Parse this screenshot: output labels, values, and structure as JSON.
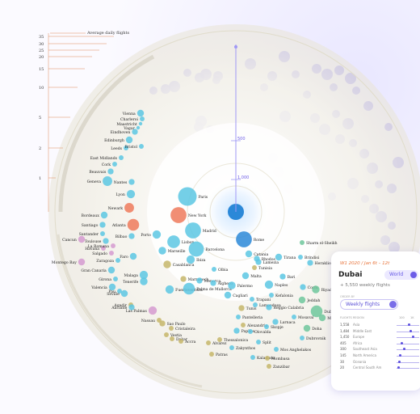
{
  "legend": {
    "title": "Average daily flights",
    "ticks": [
      "35",
      "30",
      "25",
      "20",
      "15",
      "10",
      "5",
      "2",
      "1"
    ]
  },
  "radial_axis": {
    "ticks": [
      "500",
      "1,000"
    ]
  },
  "card": {
    "subtitle": "W1 2020 / Jan 6t – 12t",
    "place": "Dubai",
    "world_label": "World",
    "weekly_flights": "+ 5,550 weekly flights",
    "sort_label": "ORDER BY",
    "sort_value": "Weekly flights",
    "headers": [
      "FLIGHTS",
      "REGION",
      "100",
      "1K"
    ],
    "rows": [
      {
        "weekly": "1,558",
        "region": "Asia",
        "frac": 0.55
      },
      {
        "weekly": "1,484",
        "region": "Middle East",
        "frac": 0.6
      },
      {
        "weekly": "1,450",
        "region": "Europe",
        "frac": 0.72
      },
      {
        "weekly": "405",
        "region": "Africa",
        "frac": 0.18
      },
      {
        "weekly": "300",
        "region": "Southeast Asia",
        "frac": 0.3
      },
      {
        "weekly": "145",
        "region": "North America",
        "frac": 0.12
      },
      {
        "weekly": "30",
        "region": "Oceania",
        "frac": 0.08
      },
      {
        "weekly": "20",
        "region": "Central South Am",
        "frac": 0.05
      }
    ]
  },
  "colors": {
    "accent": "#6c5ce7",
    "europe": "#5cc7e3",
    "red": "#ef7a5c",
    "olive": "#c6b66a",
    "pink": "#d59ad0",
    "green": "#6ec79c",
    "blue": "#2b88d8",
    "lavender": "#9f98f5"
  },
  "chart_data": {
    "type": "scatter",
    "title": "",
    "size_legend": "Average daily flights",
    "destinations": [
      {
        "name": "Vienna",
        "cat": "europe",
        "size": 4
      },
      {
        "name": "Charleroi",
        "cat": "europe",
        "size": 2
      },
      {
        "name": "Maastricht",
        "cat": "europe",
        "size": 1
      },
      {
        "name": "Vagar",
        "cat": "europe",
        "size": 1
      },
      {
        "name": "Eindhoven",
        "cat": "europe",
        "size": 3
      },
      {
        "name": "Edinburgh",
        "cat": "europe",
        "size": 4
      },
      {
        "name": "Leeds",
        "cat": "europe",
        "size": 2
      },
      {
        "name": "Bristol",
        "cat": "europe",
        "size": 2
      },
      {
        "name": "East Midlands",
        "cat": "europe",
        "size": 2
      },
      {
        "name": "Cork",
        "cat": "europe",
        "size": 2
      },
      {
        "name": "Beauvais",
        "cat": "europe",
        "size": 3
      },
      {
        "name": "Geneva",
        "cat": "europe",
        "size": 8
      },
      {
        "name": "Nantes",
        "cat": "europe",
        "size": 3
      },
      {
        "name": "Lyon",
        "cat": "europe",
        "size": 6
      },
      {
        "name": "Paris",
        "cat": "europe",
        "size": 30
      },
      {
        "name": "Newark",
        "cat": "red",
        "size": 8
      },
      {
        "name": "New York",
        "cat": "red",
        "size": 22
      },
      {
        "name": "Atlanta",
        "cat": "red",
        "size": 12
      },
      {
        "name": "Bordeaux",
        "cat": "europe",
        "size": 4
      },
      {
        "name": "Santiago",
        "cat": "europe",
        "size": 3
      },
      {
        "name": "Santander",
        "cat": "europe",
        "size": 2
      },
      {
        "name": "Toulouse",
        "cat": "europe",
        "size": 3
      },
      {
        "name": "Cancun",
        "cat": "pink",
        "size": 4
      },
      {
        "name": "Havana",
        "cat": "pink",
        "size": 2
      },
      {
        "name": "Bilbao",
        "cat": "europe",
        "size": 3
      },
      {
        "name": "La Romana",
        "cat": "pink",
        "size": 2
      },
      {
        "name": "Porto",
        "cat": "europe",
        "size": 6
      },
      {
        "name": "Madrid",
        "cat": "europe",
        "size": 22
      },
      {
        "name": "Lisbon",
        "cat": "europe",
        "size": 14
      },
      {
        "name": "Barcelona",
        "cat": "europe",
        "size": 20
      },
      {
        "name": "Rome",
        "cat": "blue",
        "size": 22
      },
      {
        "name": "Sharm el-Sheikh",
        "cat": "green",
        "size": 2
      },
      {
        "name": "Salgado",
        "cat": "pink",
        "size": 2
      },
      {
        "name": "Montego Bay",
        "cat": "pink",
        "size": 4
      },
      {
        "name": "Faro",
        "cat": "europe",
        "size": 4
      },
      {
        "name": "Zaragoza",
        "cat": "europe",
        "size": 2
      },
      {
        "name": "Marseille",
        "cat": "europe",
        "size": 5
      },
      {
        "name": "Casablanca",
        "cat": "olive",
        "size": 5
      },
      {
        "name": "Gran Canaria",
        "cat": "europe",
        "size": 4
      },
      {
        "name": "Malaga",
        "cat": "europe",
        "size": 6
      },
      {
        "name": "Tenerife",
        "cat": "europe",
        "size": 5
      },
      {
        "name": "Girona",
        "cat": "europe",
        "size": 2
      },
      {
        "name": "Ibiza",
        "cat": "europe",
        "size": 6
      },
      {
        "name": "Valencia",
        "cat": "europe",
        "size": 4
      },
      {
        "name": "Marrakech",
        "cat": "olive",
        "size": 3
      },
      {
        "name": "Menorca",
        "cat": "europe",
        "size": 3
      },
      {
        "name": "Olbia",
        "cat": "europe",
        "size": 2
      },
      {
        "name": "Catania",
        "cat": "europe",
        "size": 4
      },
      {
        "name": "Rhodos",
        "cat": "europe",
        "size": 3
      },
      {
        "name": "Tirana",
        "cat": "europe",
        "size": 4
      },
      {
        "name": "Brindisi",
        "cat": "europe",
        "size": 2
      },
      {
        "name": "Heraklion",
        "cat": "europe",
        "size": 3
      },
      {
        "name": "Tunisia",
        "cat": "olive",
        "size": 2
      },
      {
        "name": "Lamezia",
        "cat": "europe",
        "size": 3
      },
      {
        "name": "Seville",
        "cat": "europe",
        "size": 4
      },
      {
        "name": "Pau",
        "cat": "europe",
        "size": 2
      },
      {
        "name": "Fuerteventura",
        "cat": "europe",
        "size": 6
      },
      {
        "name": "Palma de Mallorca",
        "cat": "europe",
        "size": 12
      },
      {
        "name": "Alghero",
        "cat": "europe",
        "size": 3
      },
      {
        "name": "Malta",
        "cat": "europe",
        "size": 4
      },
      {
        "name": "Bari",
        "cat": "europe",
        "size": 3
      },
      {
        "name": "Palermo",
        "cat": "europe",
        "size": 5
      },
      {
        "name": "Naples",
        "cat": "europe",
        "size": 6
      },
      {
        "name": "Corfu",
        "cat": "europe",
        "size": 3
      },
      {
        "name": "Riyadh",
        "cat": "green",
        "size": 5
      },
      {
        "name": "Cagliari",
        "cat": "europe",
        "size": 4
      },
      {
        "name": "Trapani",
        "cat": "europe",
        "size": 2
      },
      {
        "name": "Kefalonia",
        "cat": "europe",
        "size": 2
      },
      {
        "name": "Jeddah",
        "cat": "green",
        "size": 4
      },
      {
        "name": "Lampedusa",
        "cat": "europe",
        "size": 2
      },
      {
        "name": "Reggio Calabria",
        "cat": "europe",
        "size": 3
      },
      {
        "name": "Tunis",
        "cat": "olive",
        "size": 3
      },
      {
        "name": "Agadir",
        "cat": "olive",
        "size": 2
      },
      {
        "name": "Alicante",
        "cat": "europe",
        "size": 3
      },
      {
        "name": "Las Palmas",
        "cat": "pink",
        "size": 6
      },
      {
        "name": "Nassau",
        "cat": "olive",
        "size": 2
      },
      {
        "name": "Mosaval",
        "cat": "europe",
        "size": 2
      },
      {
        "name": "Larnaca",
        "cat": "europe",
        "size": 3
      },
      {
        "name": "Doha",
        "cat": "green",
        "size": 4
      },
      {
        "name": "Dubai",
        "cat": "green",
        "size": 12
      },
      {
        "name": "Muscat",
        "cat": "green",
        "size": 4
      },
      {
        "name": "Dubrovnik",
        "cat": "europe",
        "size": 2
      },
      {
        "name": "Sao Paulo",
        "cat": "olive",
        "size": 3
      },
      {
        "name": "Cristaleira",
        "cat": "olive",
        "size": 2
      },
      {
        "name": "Pantelleria",
        "cat": "europe",
        "size": 2
      },
      {
        "name": "Alexandria",
        "cat": "olive",
        "size": 2
      },
      {
        "name": "Skopje",
        "cat": "europe",
        "size": 2
      },
      {
        "name": "Paphos",
        "cat": "europe",
        "size": 3
      },
      {
        "name": "Split",
        "cat": "europe",
        "size": 2
      },
      {
        "name": "Olovalda",
        "cat": "europe",
        "size": 2
      },
      {
        "name": "Mos Anghelakos",
        "cat": "europe",
        "size": 2
      },
      {
        "name": "Vestia",
        "cat": "olive",
        "size": 2
      },
      {
        "name": "Dakar",
        "cat": "olive",
        "size": 2
      },
      {
        "name": "Accra",
        "cat": "olive",
        "size": 2
      },
      {
        "name": "Alvarez",
        "cat": "olive",
        "size": 2
      },
      {
        "name": "Zakynthos",
        "cat": "europe",
        "size": 2
      },
      {
        "name": "Patras",
        "cat": "olive",
        "size": 2
      },
      {
        "name": "Kalamata",
        "cat": "europe",
        "size": 2
      },
      {
        "name": "Mombasa",
        "cat": "olive",
        "size": 2
      },
      {
        "name": "Thessalonica",
        "cat": "olive",
        "size": 2
      },
      {
        "name": "Zanzibar",
        "cat": "olive",
        "size": 2
      }
    ]
  }
}
